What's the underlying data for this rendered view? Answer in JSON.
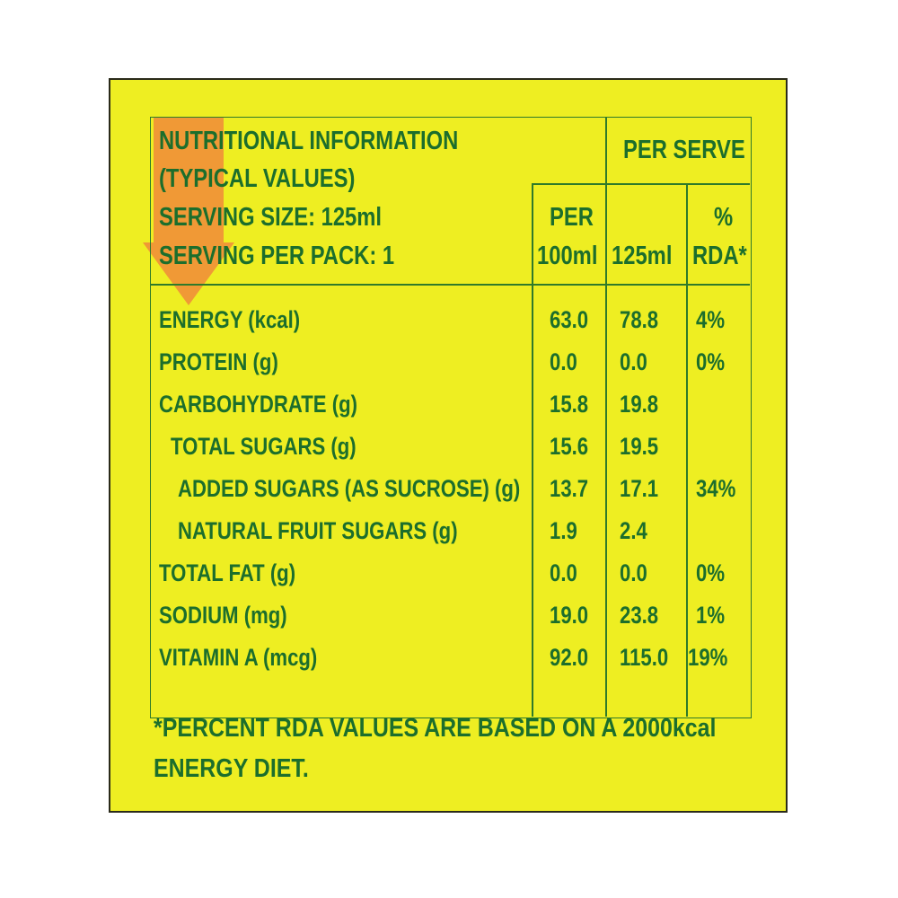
{
  "header": {
    "title_lines": [
      "NUTRITIONAL INFORMATION",
      "(TYPICAL VALUES)",
      "SERVING SIZE: 125ml",
      "SERVING PER PACK: 1"
    ],
    "per_serve": "PER SERVE",
    "col_per100_lines": [
      "PER",
      "100ml"
    ],
    "col_125": "125ml",
    "col_rda_lines": [
      "%",
      "RDA*"
    ]
  },
  "rows": [
    {
      "label": "ENERGY (kcal)",
      "per100": "63.0",
      "per125": "78.8",
      "rda": "4%"
    },
    {
      "label": "PROTEIN (g)",
      "per100": "0.0",
      "per125": "0.0",
      "rda": "0%"
    },
    {
      "label": "CARBOHYDRATE (g)",
      "per100": "15.8",
      "per125": "19.8",
      "rda": ""
    },
    {
      "label": "TOTAL SUGARS (g)",
      "per100": "15.6",
      "per125": "19.5",
      "rda": ""
    },
    {
      "label": "ADDED SUGARS (AS SUCROSE) (g)",
      "per100": "13.7",
      "per125": "17.1",
      "rda": "34%"
    },
    {
      "label": "NATURAL FRUIT SUGARS (g)",
      "per100": "1.9",
      "per125": "2.4",
      "rda": ""
    },
    {
      "label": "TOTAL FAT (g)",
      "per100": "0.0",
      "per125": "0.0",
      "rda": "0%"
    },
    {
      "label": "SODIUM (mg)",
      "per100": "19.0",
      "per125": "23.8",
      "rda": "1%"
    },
    {
      "label": "VITAMIN A (mcg)",
      "per100": "92.0",
      "per125": "115.0",
      "rda": "19%"
    }
  ],
  "footnote_lines": [
    "*PERCENT RDA VALUES ARE BASED ON A 2000kcal",
    "ENERGY DIET."
  ],
  "colors": {
    "background": "#eeee22",
    "text": "#1c6e2c",
    "arrow": "#f08a3a"
  },
  "icons": {
    "arrow": "down-arrow-icon"
  }
}
